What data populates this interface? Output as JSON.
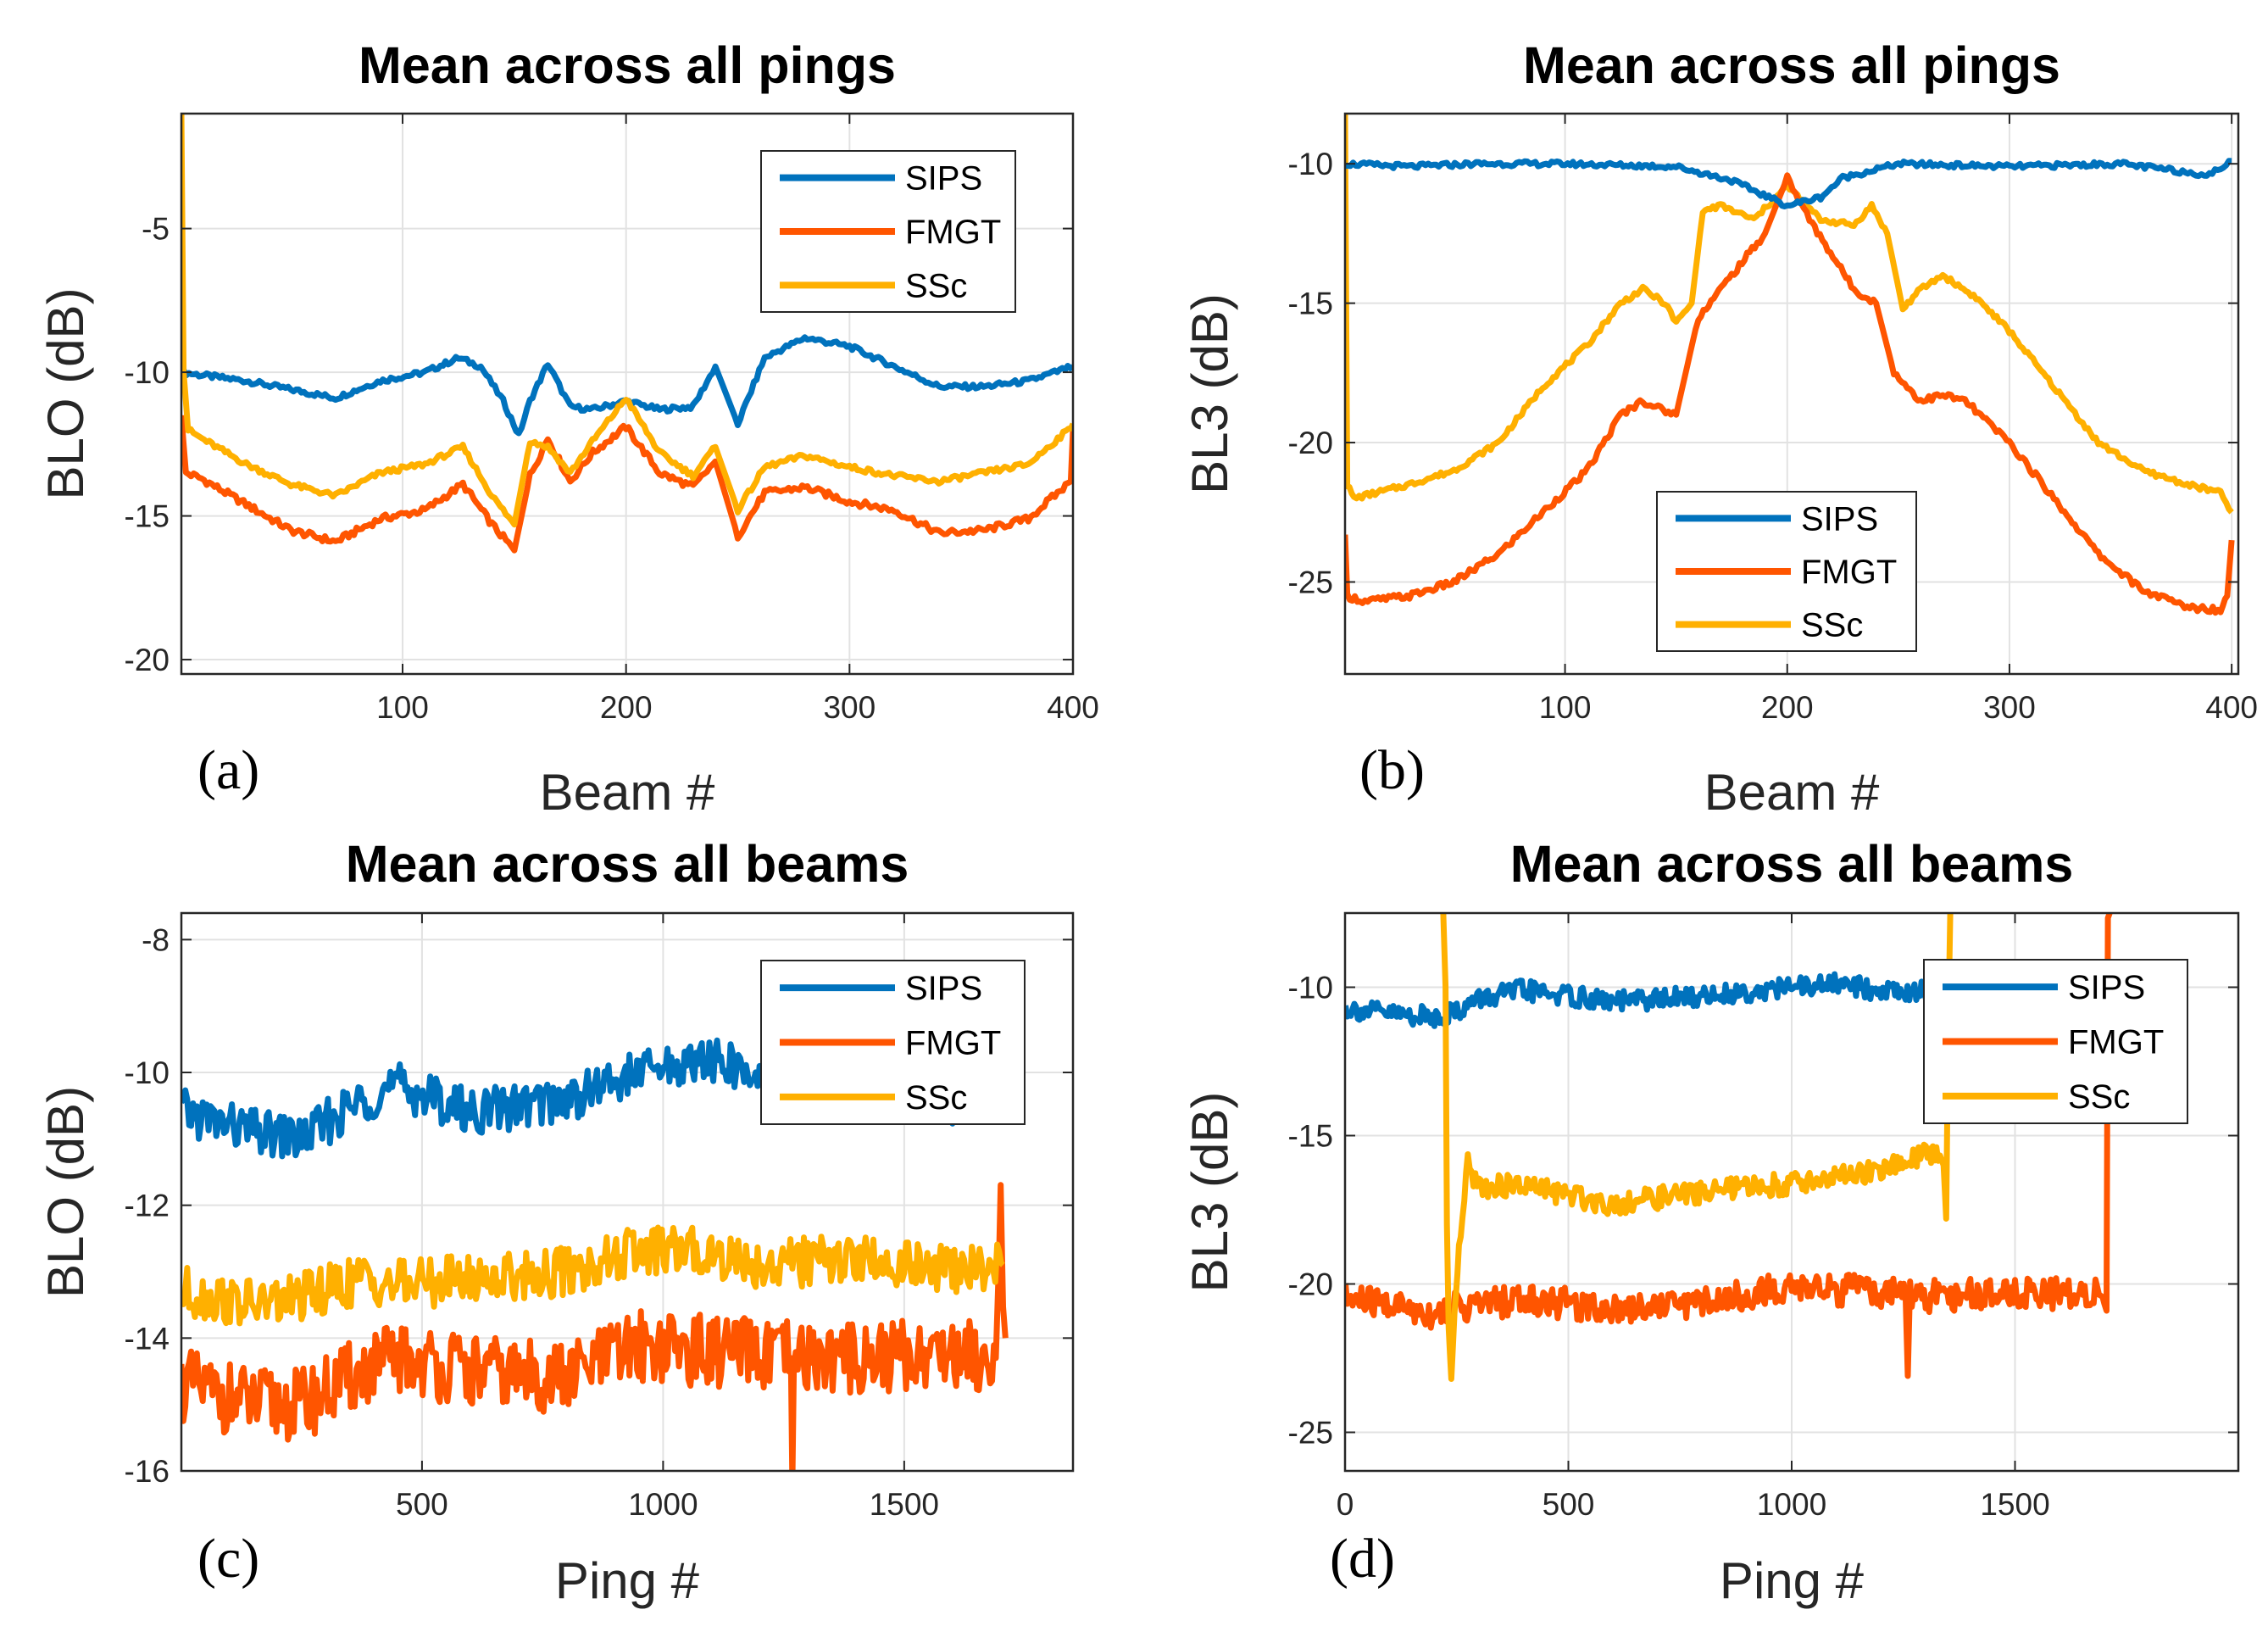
{
  "colors": {
    "SIPS": "#0072BD",
    "FMGT": "#FF5500",
    "SSc": "#FFB000",
    "grid": "#e2e2e2",
    "axis": "#262626"
  },
  "chart_data": [
    {
      "panel_label": "(a)",
      "type": "line",
      "title": "Mean across all pings",
      "xlabel": "Beam #",
      "ylabel": "BLO (dB)",
      "xlim": [
        1,
        400
      ],
      "ylim": [
        -20.5,
        -1
      ],
      "xticks": [
        "100",
        "200",
        "300",
        "400"
      ],
      "yticks": [
        "-5",
        "-10",
        "-15",
        "-20"
      ],
      "grid": true,
      "legend_placement": "top-right",
      "series": [
        {
          "name": "SIPS",
          "x": [
            1,
            10,
            30,
            50,
            70,
            90,
            110,
            125,
            135,
            145,
            152,
            157,
            165,
            175,
            185,
            200,
            215,
            230,
            240,
            250,
            262,
            280,
            300,
            320,
            340,
            360,
            380,
            400
          ],
          "y": [
            -10,
            -10.1,
            -10.3,
            -10.6,
            -10.9,
            -10.3,
            -10,
            -9.5,
            -9.8,
            -11,
            -12.2,
            -11,
            -9.7,
            -11.2,
            -11.3,
            -11,
            -11.3,
            -11.2,
            -9.8,
            -11.8,
            -9.5,
            -8.8,
            -9.1,
            -9.8,
            -10.5,
            -10.5,
            -10.3,
            -9.8
          ]
        },
        {
          "name": "FMGT",
          "x": [
            1,
            3,
            10,
            30,
            50,
            70,
            90,
            110,
            127,
            140,
            150,
            157,
            165,
            175,
            185,
            200,
            215,
            230,
            240,
            250,
            262,
            280,
            300,
            320,
            340,
            360,
            380,
            399,
            400
          ],
          "y": [
            -11.5,
            -13.5,
            -13.7,
            -14.6,
            -15.5,
            -15.9,
            -15.1,
            -14.8,
            -13.9,
            -15.3,
            -16.2,
            -13.6,
            -12.3,
            -13.8,
            -12.8,
            -11.9,
            -13.5,
            -14,
            -13.1,
            -15.7,
            -14.2,
            -14,
            -14.5,
            -14.8,
            -15.6,
            -15.5,
            -15.1,
            -13.8,
            -12
          ]
        },
        {
          "name": "SSc",
          "x": [
            1,
            2,
            4,
            10,
            30,
            50,
            70,
            90,
            110,
            127,
            140,
            150,
            157,
            165,
            175,
            185,
            200,
            215,
            230,
            240,
            250,
            262,
            280,
            300,
            320,
            340,
            360,
            380,
            398,
            400
          ],
          "y": [
            -1,
            -10,
            -12,
            -12.3,
            -13.2,
            -13.9,
            -14.3,
            -13.5,
            -13.2,
            -12.6,
            -14.3,
            -15.3,
            -12.4,
            -12.6,
            -13.5,
            -12.4,
            -10.9,
            -12.8,
            -13.6,
            -12.6,
            -14.8,
            -13.3,
            -12.9,
            -13.3,
            -13.6,
            -13.8,
            -13.5,
            -13.2,
            -12,
            -11.8
          ]
        }
      ]
    },
    {
      "panel_label": "(b)",
      "type": "line",
      "title": "Mean across all pings",
      "xlabel": "Beam #",
      "ylabel": "BL3 (dB)",
      "xlim": [
        1,
        403
      ],
      "ylim": [
        -28.3,
        -8.2
      ],
      "xticks": [
        "100",
        "200",
        "300",
        "400"
      ],
      "yticks": [
        "-10",
        "-15",
        "-20",
        "-25"
      ],
      "grid": true,
      "legend_placement": "bottom-center",
      "series": [
        {
          "name": "SIPS",
          "x": [
            1,
            30,
            60,
            100,
            150,
            175,
            200,
            215,
            225,
            250,
            300,
            350,
            390,
            400
          ],
          "y": [
            -10,
            -10.1,
            -10,
            -10,
            -10.1,
            -10.6,
            -11.5,
            -11.2,
            -10.5,
            -10,
            -10.1,
            -10,
            -10.4,
            -9.9
          ]
        },
        {
          "name": "FMGT",
          "x": [
            1,
            2,
            10,
            30,
            50,
            70,
            90,
            110,
            125,
            135,
            143,
            150,
            160,
            175,
            190,
            200,
            210,
            230,
            240,
            248,
            260,
            270,
            280,
            300,
            320,
            340,
            360,
            380,
            395,
            398,
            400
          ],
          "y": [
            -23.3,
            -25.5,
            -25.7,
            -25.5,
            -25,
            -24,
            -22.5,
            -21,
            -19,
            -18.5,
            -18.8,
            -19,
            -15.5,
            -14,
            -12.5,
            -10.5,
            -12,
            -14.5,
            -15,
            -17.5,
            -18.5,
            -18.3,
            -18.5,
            -20,
            -22,
            -24,
            -25.3,
            -25.9,
            -26,
            -25.5,
            -23.5
          ]
        },
        {
          "name": "SSc",
          "x": [
            1,
            2,
            5,
            30,
            50,
            70,
            90,
            110,
            125,
            135,
            145,
            150,
            157,
            162,
            170,
            185,
            200,
            215,
            230,
            238,
            245,
            252,
            260,
            270,
            285,
            300,
            320,
            340,
            360,
            380,
            395,
            400
          ],
          "y": [
            -8.2,
            -21.5,
            -22,
            -21.5,
            -21,
            -20,
            -18,
            -16.5,
            -15,
            -14.5,
            -15,
            -15.7,
            -15,
            -11.7,
            -11.5,
            -12,
            -10.8,
            -12,
            -12.2,
            -11.5,
            -12.5,
            -15.2,
            -14.5,
            -14,
            -14.8,
            -16,
            -18,
            -20,
            -21,
            -21.5,
            -21.8,
            -22.5
          ]
        }
      ]
    },
    {
      "panel_label": "(c)",
      "type": "line",
      "title": "Mean across all beams",
      "xlabel": "Ping #",
      "ylabel": "BLO (dB)",
      "xlim": [
        1,
        1850
      ],
      "ylim": [
        -16,
        -7.6
      ],
      "xticks": [
        "500",
        "1000",
        "1500"
      ],
      "yticks": [
        "-8",
        "-10",
        "-12",
        "-14",
        "-16"
      ],
      "grid": true,
      "legend_placement": "top-right",
      "series": [
        {
          "name": "SIPS",
          "x": [
            1,
            150,
            250,
            380,
            450,
            600,
            800,
            950,
            1100,
            1200,
            1400,
            1600,
            1700,
            1705
          ],
          "y": [
            -10.6,
            -10.9,
            -11,
            -10.4,
            -10.2,
            -10.6,
            -10.4,
            -10,
            -9.8,
            -10.1,
            -10.3,
            -10.5,
            -10.4,
            -10.5
          ]
        },
        {
          "name": "FMGT",
          "x": [
            1,
            150,
            250,
            380,
            450,
            600,
            800,
            950,
            1100,
            1265,
            1268,
            1271,
            1400,
            1600,
            1690,
            1700,
            1705,
            1710
          ],
          "y": [
            -14.7,
            -15,
            -15,
            -14.5,
            -14.3,
            -14.5,
            -14.6,
            -14.1,
            -14.2,
            -14.3,
            -16.2,
            -14.3,
            -14.3,
            -14.2,
            -14.3,
            -12,
            -13,
            -14
          ]
        },
        {
          "name": "SSc",
          "x": [
            1,
            150,
            250,
            380,
            450,
            600,
            800,
            950,
            1100,
            1200,
            1400,
            1600,
            1705
          ],
          "y": [
            -13.3,
            -13.5,
            -13.4,
            -13.1,
            -13.2,
            -13.1,
            -13,
            -12.7,
            -12.7,
            -12.9,
            -12.8,
            -13,
            -12.9
          ]
        }
      ]
    },
    {
      "panel_label": "(d)",
      "type": "line",
      "title": "Mean across all beams",
      "xlabel": "Ping #",
      "ylabel": "BL3 (dB)",
      "xlim": [
        0,
        2000
      ],
      "ylim": [
        -26.3,
        -7.5
      ],
      "xticks": [
        "0",
        "500",
        "1000",
        "1500"
      ],
      "yticks": [
        "-10",
        "-15",
        "-20",
        "-25"
      ],
      "grid": true,
      "legend_placement": "top-right",
      "series": [
        {
          "name": "SIPS",
          "x": [
            1,
            100,
            200,
            250,
            300,
            400,
            600,
            800,
            1000,
            1100,
            1200,
            1350
          ],
          "y": [
            -10.7,
            -10.9,
            -11,
            -10.8,
            -10.4,
            -10.1,
            -10.5,
            -10.3,
            -10,
            -9.9,
            -10.1,
            -10.2
          ]
        },
        {
          "name": "FMGT",
          "x": [
            1,
            100,
            200,
            250,
            300,
            400,
            600,
            800,
            1000,
            1200,
            1255,
            1260,
            1265,
            1300,
            1500,
            1700,
            1705,
            1708,
            1712
          ],
          "y": [
            -20.5,
            -20.7,
            -21,
            -20.8,
            -20.7,
            -20.5,
            -20.8,
            -20.6,
            -20.1,
            -20.3,
            -20.4,
            -23.1,
            -20.4,
            -20.4,
            -20.3,
            -20.3,
            -20.9,
            -7.5,
            -7.5
          ]
        },
        {
          "name": "SSc",
          "x": [
            220,
            225,
            228,
            232,
            238,
            245,
            255,
            275,
            300,
            400,
            600,
            800,
            1000,
            1200,
            1320,
            1340,
            1346,
            1350,
            1355
          ],
          "y": [
            -7.5,
            -10,
            -18,
            -21.5,
            -23.2,
            -21,
            -19,
            -16,
            -16.7,
            -16.7,
            -17.3,
            -16.9,
            -16.6,
            -16.2,
            -15.5,
            -16,
            -17.8,
            -12,
            -7.5
          ]
        }
      ]
    }
  ]
}
